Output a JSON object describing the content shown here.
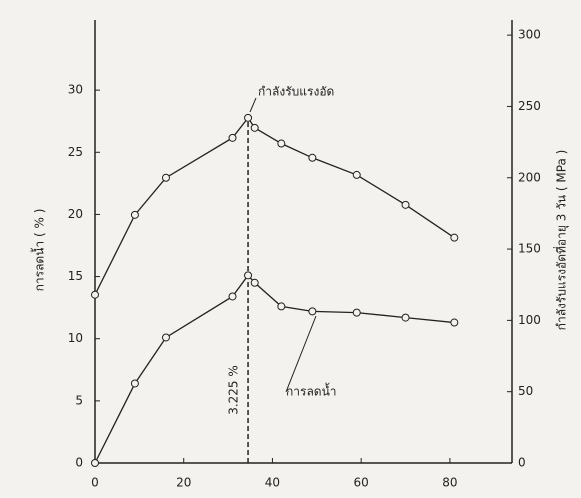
{
  "chart_data": {
    "type": "line",
    "x": [
      0,
      9,
      16,
      31,
      34.5,
      36,
      42,
      49,
      59,
      70,
      81
    ],
    "series": [
      {
        "name": "กำลังรับแรงอัด",
        "color": "#222222",
        "axis": "y2",
        "values": [
          118,
          174,
          200,
          228,
          242,
          235,
          224,
          214,
          202,
          181,
          158
        ]
      },
      {
        "name": "การลดน้ำ",
        "color": "#222222",
        "values": [
          0,
          6.4,
          10.1,
          13.4,
          15.1,
          14.5,
          12.6,
          12.2,
          12.1,
          11.7,
          11.3
        ]
      }
    ],
    "xlim": [
      0,
      94
    ],
    "xticks": [
      0,
      20,
      40,
      60,
      80
    ],
    "ylim": [
      0,
      35
    ],
    "yticks": [
      0,
      5,
      10,
      15,
      20,
      25,
      30
    ],
    "y2lim": [
      0,
      305
    ],
    "y2ticks": [
      0,
      50,
      100,
      150,
      200,
      250,
      300
    ],
    "ylabel": "การลดน้ำ ( % )",
    "y2label": "กำลังรับแรงอัดที่อายุ 3 วัน ( MPa )",
    "reference_line": {
      "x": 34.5,
      "label": "3.225 %"
    }
  }
}
